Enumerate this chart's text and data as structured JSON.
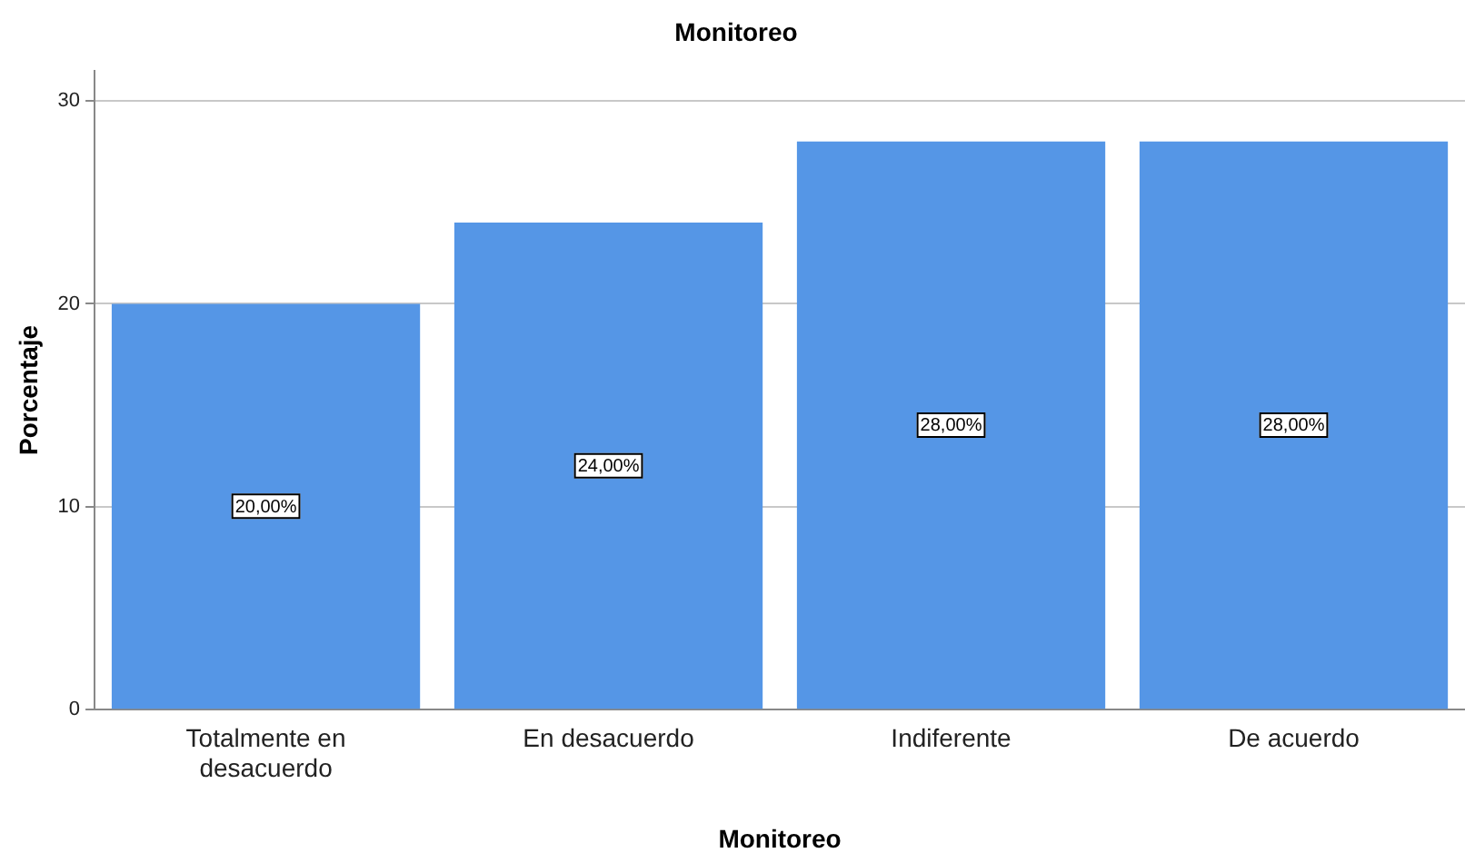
{
  "chart_data": {
    "type": "bar",
    "title": "Monitoreo",
    "xlabel": "Monitoreo",
    "ylabel": "Porcentaje",
    "categories": [
      "Totalmente en desacuerdo",
      "En desacuerdo",
      "Indiferente",
      "De acuerdo"
    ],
    "values": [
      20,
      24,
      28,
      28
    ],
    "color": "#5596e6",
    "value_labels": [
      "20,00%",
      "24,00%",
      "28,00%",
      "28,00%"
    ],
    "ylim": [
      0,
      31.5
    ],
    "yticks": [
      0,
      10,
      20,
      30
    ],
    "grid": "y",
    "legend": false
  }
}
